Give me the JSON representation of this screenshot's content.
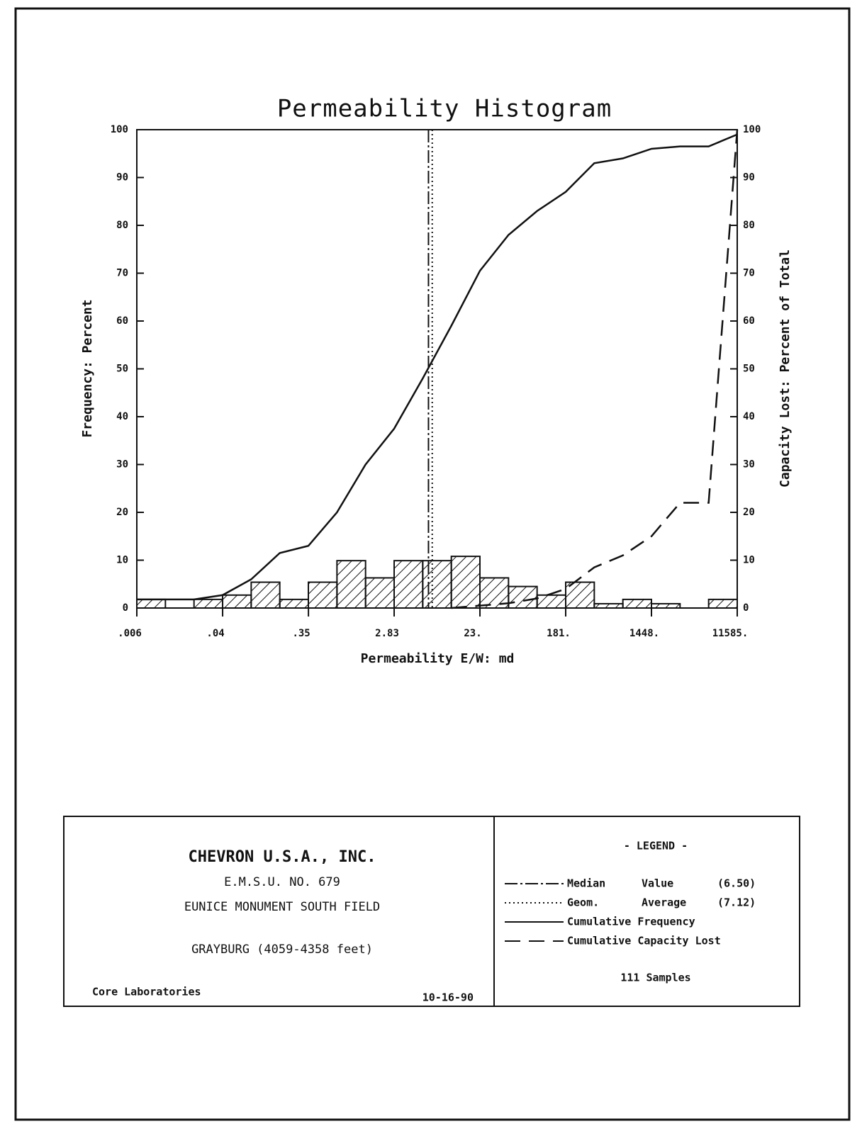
{
  "chart_data": {
    "type": "histogram",
    "title": "Permeability Histogram",
    "x_label": "Permeability E/W: md",
    "y_label": "Frequency: Percent",
    "y2_label": "Capacity Lost: Percent of Total",
    "xscale": "log2",
    "xlim": [
      0.00552,
      11585.2
    ],
    "xticks": [
      {
        "value": 0.00552,
        "label": ".006"
      },
      {
        "value": 0.0442,
        "label": ".04"
      },
      {
        "value": 0.354,
        "label": ".35"
      },
      {
        "value": 2.828,
        "label": "2.83"
      },
      {
        "value": 22.63,
        "label": "23."
      },
      {
        "value": 181.02,
        "label": "181."
      },
      {
        "value": 1448.2,
        "label": "1448."
      },
      {
        "value": 11585.2,
        "label": "11585."
      }
    ],
    "ylim": [
      0,
      100
    ],
    "yticks": [
      0,
      10,
      20,
      30,
      40,
      50,
      60,
      70,
      80,
      90,
      100
    ],
    "y2lim": [
      0,
      100
    ],
    "y2ticks": [
      0,
      10,
      20,
      30,
      40,
      50,
      60,
      70,
      80,
      90,
      100
    ],
    "bins": [
      0.00552,
      0.01104,
      0.02209,
      0.04418,
      0.08836,
      0.1767,
      0.3534,
      0.7069,
      1.414,
      2.828,
      5.655,
      11.31,
      22.62,
      45.24,
      90.49,
      181.0,
      362.0,
      723.9,
      1448,
      2896,
      5791,
      11585.2
    ],
    "values": [
      1.8,
      0,
      1.8,
      2.7,
      5.4,
      1.8,
      5.4,
      9.9,
      6.3,
      9.9,
      9.9,
      10.8,
      6.3,
      4.5,
      2.7,
      5.4,
      0.9,
      1.8,
      0.9,
      0,
      1.8
    ],
    "color": "#111111",
    "series": [
      {
        "name": "Cumulative Frequency",
        "color": "#111111",
        "style": "solid",
        "x": [
          0.00552,
          0.01104,
          0.02209,
          0.04418,
          0.08836,
          0.1767,
          0.3534,
          0.7069,
          1.414,
          2.828,
          5.655,
          11.31,
          22.62,
          45.24,
          90.49,
          181.0,
          362.0,
          723.9,
          1448,
          2896,
          5791,
          11585.2
        ],
        "values": [
          1.8,
          1.8,
          1.8,
          2.7,
          6,
          11.5,
          13,
          20,
          30,
          37.5,
          48,
          59,
          70.5,
          78,
          83,
          87,
          93,
          94,
          96,
          96.5,
          96.5,
          99
        ]
      },
      {
        "name": "Cumulative Capacity Lost",
        "color": "#111111",
        "style": "dashed",
        "axis": "y2",
        "x": [
          11.31,
          22.62,
          45.24,
          90.49,
          181.0,
          362.0,
          723.9,
          1448,
          2896,
          5791,
          11585.2
        ],
        "values": [
          0,
          0.5,
          1,
          2,
          4,
          8.5,
          11,
          15,
          22,
          22,
          100
        ]
      }
    ],
    "reference_lines": [
      {
        "name": "Median",
        "label": "Value",
        "color": "#111111",
        "style": "dashdot",
        "values": [
          6.5
        ],
        "value_labels": [
          "(6.50)"
        ]
      },
      {
        "name": "Geom.",
        "label": "Average",
        "color": "#111111",
        "style": "dotted",
        "values": [
          7.12
        ],
        "value_labels": [
          "(7.12)"
        ]
      }
    ]
  },
  "footer": {
    "company": "CHEVRON U.S.A., INC.",
    "well": "E.M.S.U. NO. 679",
    "field": "EUNICE MONUMENT SOUTH FIELD",
    "formation": "GRAYBURG (4059-4358 feet)",
    "lab": "Core Laboratories",
    "date": "10-16-90",
    "legend_title": "- LEGEND -",
    "samples": "111 Samples"
  }
}
